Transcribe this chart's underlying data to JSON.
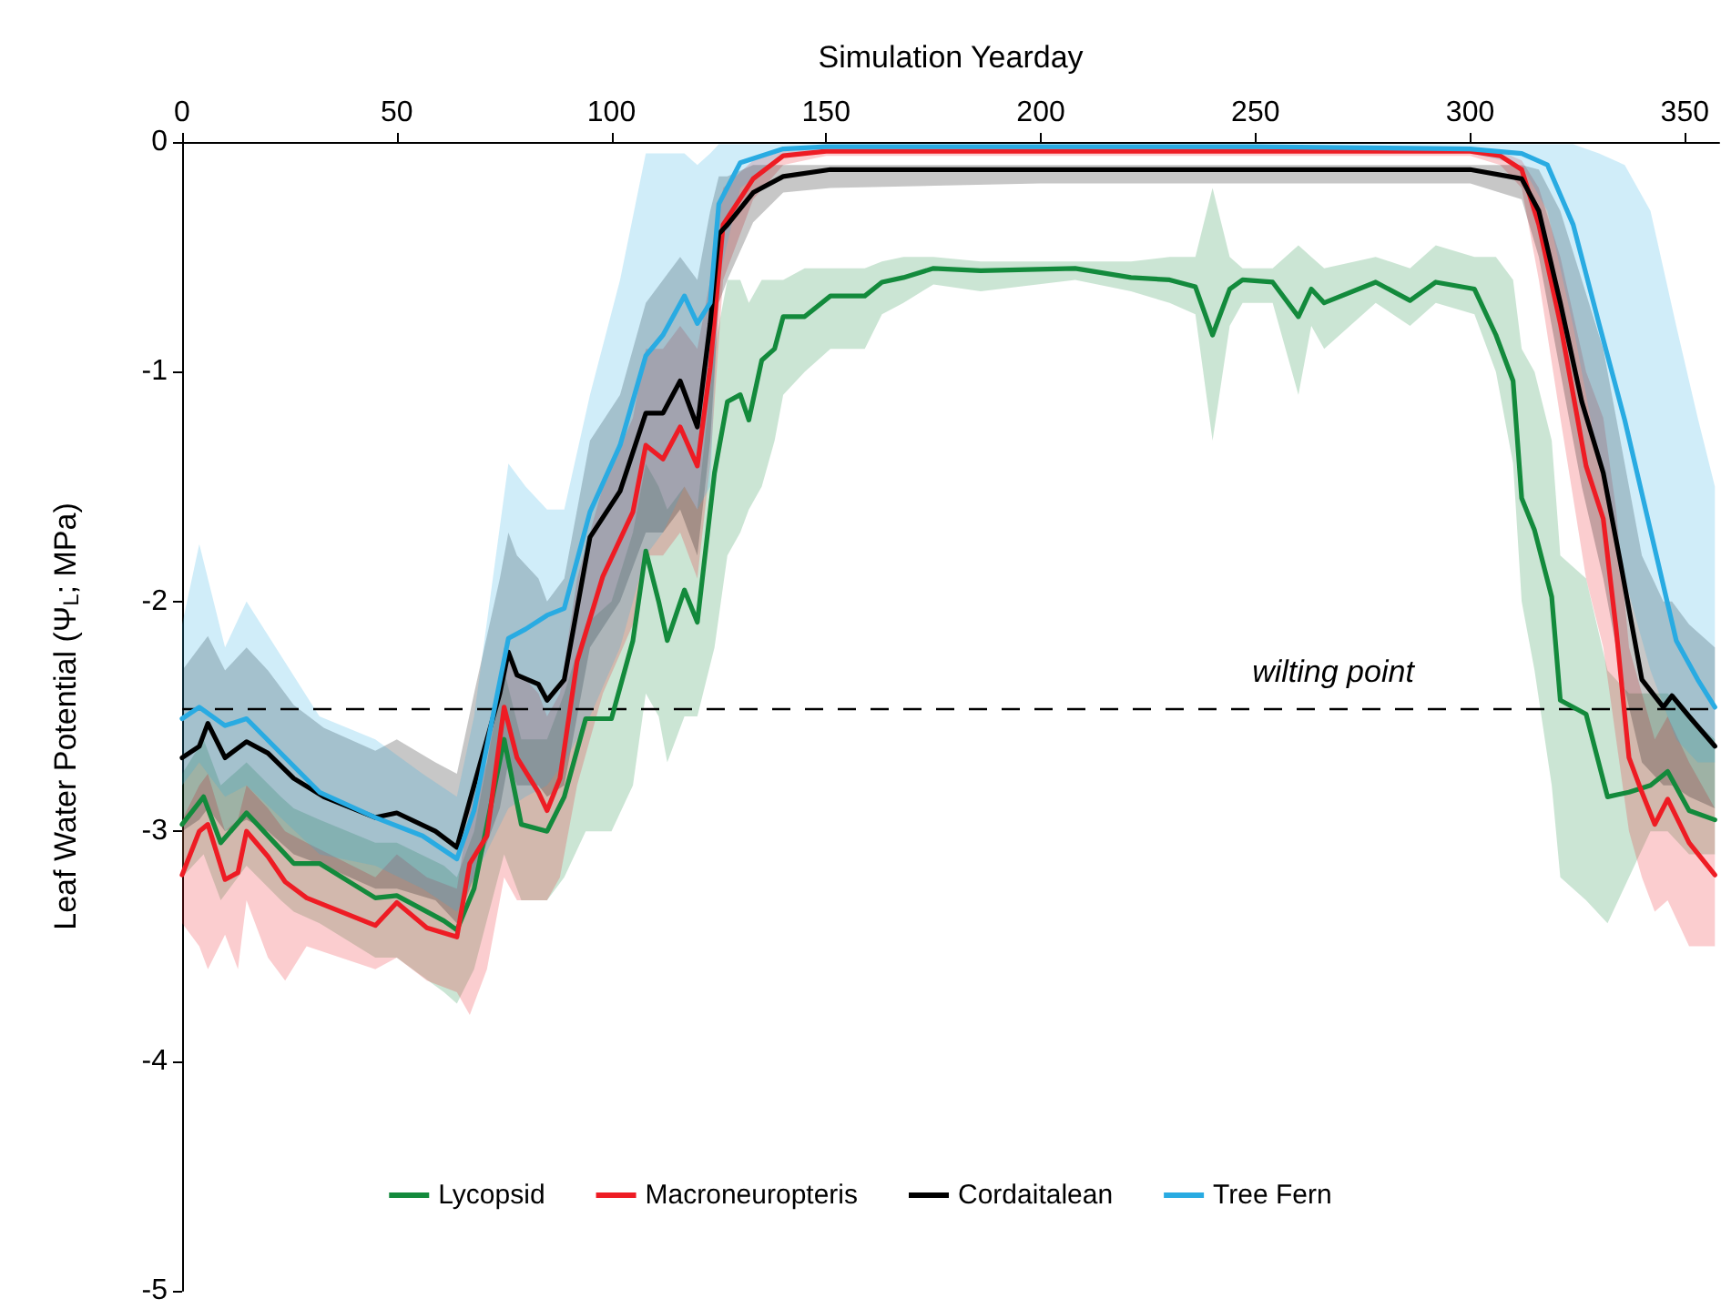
{
  "chart_data": {
    "type": "line",
    "xlabel": "Simulation Yearday",
    "ylabel": "Leaf Water Potential (Ψ$_{L}$; MPa)",
    "xlim": [
      0,
      358
    ],
    "xticks": [
      0,
      50,
      100,
      150,
      200,
      250,
      300,
      350
    ],
    "ylim": [
      -5,
      0
    ],
    "yticks": [
      0,
      -1,
      -2,
      -3,
      -4,
      -5
    ],
    "grid": false,
    "legend": "bottom",
    "marker": "none",
    "line_style": "solid",
    "ref_lines": [
      {
        "axis": "y",
        "value": -2.47,
        "label": "wilting point",
        "color": "#000000",
        "line_style": "dashed"
      }
    ],
    "series": [
      {
        "name": "Lycopsid",
        "color": "#138a3c",
        "x": [
          0,
          5,
          9,
          15,
          23,
          26,
          32,
          45,
          50,
          61,
          64,
          68,
          75,
          79,
          85,
          89,
          94,
          100,
          105,
          108,
          111,
          113,
          117,
          120,
          124,
          127,
          130,
          132,
          135,
          138,
          140,
          145,
          151,
          159,
          163,
          168,
          175,
          186,
          208,
          221,
          230,
          236,
          240,
          244,
          247,
          254,
          260,
          263,
          266,
          278,
          286,
          292,
          301,
          306,
          310,
          312,
          315,
          319,
          321,
          327,
          332,
          337,
          342,
          346,
          351,
          357
        ],
        "values": [
          -2.97,
          -2.85,
          -3.05,
          -2.92,
          -3.08,
          -3.14,
          -3.14,
          -3.29,
          -3.28,
          -3.39,
          -3.43,
          -3.25,
          -2.6,
          -2.97,
          -3.0,
          -2.85,
          -2.51,
          -2.51,
          -2.17,
          -1.78,
          -2.0,
          -2.17,
          -1.95,
          -2.09,
          -1.44,
          -1.13,
          -1.1,
          -1.21,
          -0.95,
          -0.9,
          -0.76,
          -0.76,
          -0.67,
          -0.67,
          -0.61,
          -0.59,
          -0.55,
          -0.56,
          -0.55,
          -0.59,
          -0.6,
          -0.63,
          -0.84,
          -0.64,
          -0.6,
          -0.61,
          -0.76,
          -0.64,
          -0.7,
          -0.61,
          -0.69,
          -0.61,
          -0.64,
          -0.84,
          -1.04,
          -1.55,
          -1.69,
          -1.98,
          -2.43,
          -2.49,
          -2.85,
          -2.83,
          -2.8,
          -2.74,
          -2.91,
          -2.95
        ],
        "upper": [
          -2.75,
          -2.6,
          -2.8,
          -2.7,
          -2.85,
          -2.9,
          -2.95,
          -3.05,
          -3.05,
          -3.15,
          -3.2,
          -3.0,
          -2.3,
          -2.6,
          -2.6,
          -2.4,
          -2.1,
          -2.0,
          -1.7,
          -1.4,
          -1.5,
          -1.6,
          -1.5,
          -1.6,
          -0.9,
          -0.6,
          -0.6,
          -0.7,
          -0.6,
          -0.6,
          -0.6,
          -0.55,
          -0.55,
          -0.55,
          -0.52,
          -0.5,
          -0.5,
          -0.52,
          -0.52,
          -0.52,
          -0.5,
          -0.5,
          -0.2,
          -0.5,
          -0.55,
          -0.55,
          -0.45,
          -0.5,
          -0.55,
          -0.5,
          -0.55,
          -0.45,
          -0.5,
          -0.5,
          -0.6,
          -0.9,
          -1.0,
          -1.3,
          -1.8,
          -1.9,
          -2.3,
          -2.4,
          -2.4,
          -2.4,
          -2.5,
          -2.6
        ],
        "lower": [
          -3.2,
          -3.1,
          -3.3,
          -3.15,
          -3.3,
          -3.35,
          -3.4,
          -3.55,
          -3.55,
          -3.7,
          -3.75,
          -3.6,
          -3.1,
          -3.3,
          -3.3,
          -3.2,
          -3.0,
          -3.0,
          -2.8,
          -2.4,
          -2.5,
          -2.7,
          -2.5,
          -2.5,
          -2.2,
          -1.8,
          -1.7,
          -1.6,
          -1.5,
          -1.3,
          -1.1,
          -1.0,
          -0.9,
          -0.9,
          -0.75,
          -0.7,
          -0.62,
          -0.65,
          -0.6,
          -0.65,
          -0.7,
          -0.75,
          -1.3,
          -0.8,
          -0.7,
          -0.7,
          -1.1,
          -0.8,
          -0.9,
          -0.7,
          -0.8,
          -0.7,
          -0.75,
          -1.0,
          -1.4,
          -2.0,
          -2.3,
          -2.8,
          -3.2,
          -3.3,
          -3.4,
          -3.2,
          -3.0,
          -3.0,
          -3.1,
          -3.1
        ]
      },
      {
        "name": "Macroneuropteris",
        "color": "#ee1c24",
        "x": [
          0,
          4,
          6,
          10,
          13,
          15,
          20,
          24,
          29,
          45,
          50,
          57,
          64,
          67,
          71,
          75,
          78,
          83,
          85,
          88,
          92,
          98,
          105,
          108,
          112,
          116,
          120,
          123,
          126,
          133,
          140,
          150,
          200,
          250,
          300,
          307,
          312,
          316,
          321,
          327,
          331,
          334,
          337,
          340,
          343,
          346,
          351,
          357
        ],
        "values": [
          -3.19,
          -3.0,
          -2.97,
          -3.21,
          -3.18,
          -3.0,
          -3.11,
          -3.22,
          -3.29,
          -3.41,
          -3.31,
          -3.42,
          -3.46,
          -3.14,
          -3.02,
          -2.46,
          -2.68,
          -2.83,
          -2.91,
          -2.77,
          -2.26,
          -1.89,
          -1.61,
          -1.32,
          -1.38,
          -1.24,
          -1.41,
          -0.98,
          -0.36,
          -0.16,
          -0.06,
          -0.04,
          -0.04,
          -0.04,
          -0.04,
          -0.06,
          -0.12,
          -0.36,
          -0.79,
          -1.41,
          -1.64,
          -2.12,
          -2.68,
          -2.83,
          -2.97,
          -2.86,
          -3.05,
          -3.19
        ],
        "upper": [
          -2.95,
          -2.8,
          -2.75,
          -3.0,
          -2.95,
          -2.8,
          -2.9,
          -3.0,
          -3.05,
          -3.2,
          -3.1,
          -3.2,
          -3.25,
          -2.9,
          -2.7,
          -2.2,
          -2.3,
          -2.4,
          -2.5,
          -2.4,
          -1.9,
          -1.5,
          -1.2,
          -0.9,
          -0.9,
          -0.8,
          -0.9,
          -0.6,
          -0.2,
          -0.08,
          -0.04,
          -0.03,
          -0.03,
          -0.03,
          -0.03,
          -0.04,
          -0.08,
          -0.2,
          -0.5,
          -1.0,
          -1.2,
          -1.6,
          -2.2,
          -2.4,
          -2.6,
          -2.5,
          -2.7,
          -2.9
        ],
        "lower": [
          -3.4,
          -3.5,
          -3.6,
          -3.45,
          -3.6,
          -3.3,
          -3.55,
          -3.65,
          -3.5,
          -3.6,
          -3.55,
          -3.65,
          -3.7,
          -3.8,
          -3.6,
          -3.2,
          -3.3,
          -3.3,
          -3.3,
          -3.2,
          -2.8,
          -2.4,
          -2.1,
          -1.8,
          -1.8,
          -1.7,
          -1.9,
          -1.4,
          -0.6,
          -0.25,
          -0.1,
          -0.06,
          -0.06,
          -0.06,
          -0.06,
          -0.1,
          -0.2,
          -0.6,
          -1.2,
          -1.9,
          -2.2,
          -2.6,
          -3.0,
          -3.2,
          -3.35,
          -3.3,
          -3.5,
          -3.5
        ]
      },
      {
        "name": "Cordaitalean",
        "color": "#000000",
        "x": [
          0,
          4,
          6,
          10,
          15,
          20,
          26,
          33,
          45,
          50,
          59,
          64,
          68,
          74,
          76,
          78,
          83,
          85,
          89,
          95,
          102,
          108,
          112,
          116,
          120,
          123,
          125,
          127,
          133,
          140,
          151,
          200,
          250,
          300,
          312,
          316,
          321,
          326,
          331,
          335,
          340,
          345,
          347,
          351,
          357
        ],
        "values": [
          -2.68,
          -2.63,
          -2.53,
          -2.68,
          -2.61,
          -2.66,
          -2.77,
          -2.85,
          -2.94,
          -2.92,
          -3.0,
          -3.07,
          -2.8,
          -2.4,
          -2.22,
          -2.32,
          -2.36,
          -2.43,
          -2.34,
          -1.72,
          -1.52,
          -1.18,
          -1.18,
          -1.04,
          -1.24,
          -0.79,
          -0.4,
          -0.36,
          -0.22,
          -0.15,
          -0.12,
          -0.12,
          -0.12,
          -0.12,
          -0.16,
          -0.3,
          -0.7,
          -1.13,
          -1.44,
          -1.83,
          -2.34,
          -2.46,
          -2.41,
          -2.5,
          -2.63
        ],
        "upper": [
          -2.3,
          -2.2,
          -2.15,
          -2.3,
          -2.2,
          -2.3,
          -2.45,
          -2.55,
          -2.65,
          -2.6,
          -2.7,
          -2.75,
          -2.4,
          -1.9,
          -1.7,
          -1.8,
          -1.9,
          -2.0,
          -1.9,
          -1.3,
          -1.1,
          -0.7,
          -0.6,
          -0.5,
          -0.6,
          -0.3,
          -0.15,
          -0.15,
          -0.1,
          -0.1,
          -0.1,
          -0.1,
          -0.1,
          -0.1,
          -0.1,
          -0.12,
          -0.3,
          -0.6,
          -0.9,
          -1.3,
          -1.8,
          -2.0,
          -2.0,
          -2.1,
          -2.2
        ],
        "lower": [
          -3.0,
          -2.95,
          -2.9,
          -3.0,
          -2.95,
          -3.0,
          -3.1,
          -3.15,
          -3.25,
          -3.25,
          -3.3,
          -3.4,
          -3.2,
          -2.9,
          -2.7,
          -2.8,
          -2.8,
          -2.85,
          -2.8,
          -2.2,
          -2.0,
          -1.7,
          -1.7,
          -1.6,
          -1.8,
          -1.3,
          -0.7,
          -0.6,
          -0.35,
          -0.22,
          -0.2,
          -0.18,
          -0.18,
          -0.18,
          -0.25,
          -0.5,
          -1.0,
          -1.5,
          -1.9,
          -2.3,
          -2.7,
          -2.8,
          -2.8,
          -2.85,
          -2.9
        ]
      },
      {
        "name": "Tree Fern",
        "color": "#29abe2",
        "x": [
          0,
          4,
          10,
          15,
          32,
          45,
          56,
          64,
          68,
          76,
          80,
          85,
          89,
          95,
          102,
          108,
          112,
          117,
          120,
          123,
          125,
          130,
          140,
          150,
          200,
          250,
          300,
          312,
          318,
          324,
          330,
          336,
          342,
          348,
          353,
          357
        ],
        "values": [
          -2.51,
          -2.46,
          -2.54,
          -2.51,
          -2.83,
          -2.94,
          -3.02,
          -3.12,
          -2.91,
          -2.16,
          -2.12,
          -2.06,
          -2.03,
          -1.61,
          -1.32,
          -0.93,
          -0.84,
          -0.67,
          -0.79,
          -0.7,
          -0.27,
          -0.09,
          -0.03,
          -0.02,
          -0.02,
          -0.02,
          -0.03,
          -0.05,
          -0.1,
          -0.36,
          -0.79,
          -1.21,
          -1.69,
          -2.17,
          -2.34,
          -2.46
        ],
        "upper": [
          -2.1,
          -1.75,
          -2.2,
          -2.0,
          -2.5,
          -2.6,
          -2.75,
          -2.85,
          -2.5,
          -1.4,
          -1.5,
          -1.6,
          -1.6,
          -1.1,
          -0.6,
          -0.05,
          -0.05,
          -0.05,
          -0.1,
          -0.05,
          -0.01,
          -0.01,
          -0.01,
          -0.01,
          -0.01,
          -0.01,
          -0.01,
          -0.01,
          -0.01,
          -0.01,
          -0.05,
          -0.1,
          -0.3,
          -0.8,
          -1.2,
          -1.5
        ],
        "lower": [
          -2.8,
          -2.7,
          -2.85,
          -2.8,
          -3.1,
          -3.15,
          -3.25,
          -3.35,
          -3.2,
          -2.9,
          -2.85,
          -2.8,
          -2.7,
          -2.5,
          -2.2,
          -1.8,
          -1.7,
          -1.5,
          -1.6,
          -1.5,
          -0.6,
          -0.2,
          -0.06,
          -0.04,
          -0.04,
          -0.04,
          -0.05,
          -0.1,
          -0.3,
          -0.8,
          -1.4,
          -1.9,
          -2.3,
          -2.6,
          -2.7,
          -2.7
        ]
      }
    ]
  }
}
